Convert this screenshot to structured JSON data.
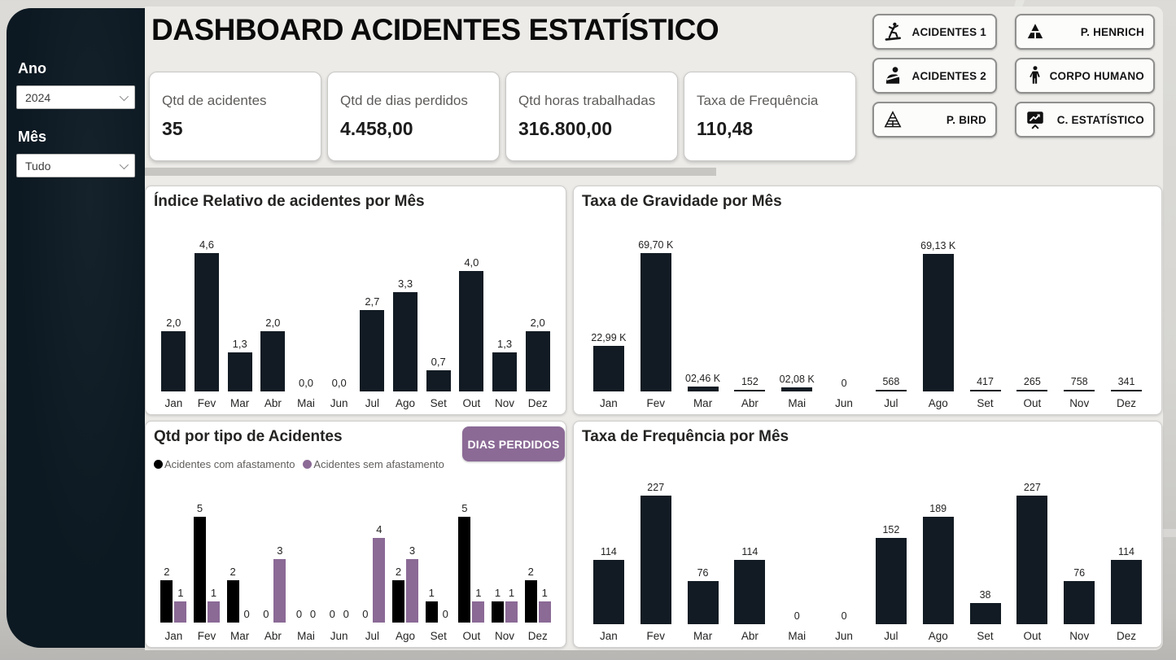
{
  "header": {
    "title": "DASHBOARD ACIDENTES ESTATÍSTICO",
    "nav_buttons": [
      {
        "label": "ACIDENTES 1",
        "icon": "slipping-person-icon"
      },
      {
        "label": "P. HENRICH",
        "icon": "pyramid-solid-icon"
      },
      {
        "label": "ACIDENTES 2",
        "icon": "injured-person-icon"
      },
      {
        "label": "CORPO HUMANO",
        "icon": "human-body-icon"
      },
      {
        "label": "P. BIRD",
        "icon": "pyramid-outline-icon"
      },
      {
        "label": "C. ESTATÍSTICO",
        "icon": "chart-presentation-icon"
      }
    ]
  },
  "sidebar": {
    "ano_label": "Ano",
    "ano_value": "2024",
    "mes_label": "Mês",
    "mes_value": "Tudo"
  },
  "kpis": [
    {
      "label": "Qtd de acidentes",
      "value": "35"
    },
    {
      "label": "Qtd de dias perdidos",
      "value": "4.458,00"
    },
    {
      "label": "Qtd horas trabalhadas",
      "value": "316.800,00"
    },
    {
      "label": "Taxa de Frequência",
      "value": "110,48"
    }
  ],
  "colors": {
    "bar_dark": "#121B23",
    "accent_purple": "#8B6A96",
    "sidebar_bg": "#0D1922",
    "legend_black": "#000000"
  },
  "chart_data": [
    {
      "type": "bar",
      "title": "Índice Relativo de acidentes por Mês",
      "categories": [
        "Jan",
        "Fev",
        "Mar",
        "Abr",
        "Mai",
        "Jun",
        "Jul",
        "Ago",
        "Set",
        "Out",
        "Nov",
        "Dez"
      ],
      "series": [
        {
          "name": "Índice relativo de acidentes",
          "color": "#121B23",
          "values": [
            2.0,
            4.6,
            1.3,
            2.0,
            0.0,
            0.0,
            2.7,
            3.3,
            0.7,
            4.0,
            1.3,
            2.0
          ],
          "labels": [
            "2,0",
            "4,6",
            "1,3",
            "2,0",
            "0,0",
            "0,0",
            "2,7",
            "3,3",
            "0,7",
            "4,0",
            "1,3",
            "2,0"
          ]
        }
      ],
      "ylim": [
        0,
        4.6
      ],
      "grid": false,
      "legend": "none"
    },
    {
      "type": "bar",
      "title": "Taxa de Gravidade por Mês",
      "categories": [
        "Jan",
        "Fev",
        "Mar",
        "Abr",
        "Mai",
        "Jun",
        "Jul",
        "Ago",
        "Set",
        "Out",
        "Nov",
        "Dez"
      ],
      "series": [
        {
          "name": "Taxa de gravidade",
          "color": "#121B23",
          "values": [
            22990,
            69700,
            2460,
            152,
            2080,
            0,
            568,
            69130,
            417,
            265,
            758,
            341
          ],
          "labels": [
            "22,99 K",
            "69,70 K",
            "02,46 K",
            "152",
            "02,08 K",
            "0",
            "568",
            "69,13 K",
            "417",
            "265",
            "758",
            "341"
          ]
        }
      ],
      "ylim": [
        0,
        69700
      ],
      "grid": false,
      "legend": "none"
    },
    {
      "type": "grouped-bar",
      "title": "Qtd por tipo de Acidentes",
      "action_button": "DIAS PERDIDOS",
      "categories": [
        "Jan",
        "Fev",
        "Mar",
        "Abr",
        "Mai",
        "Jun",
        "Jul",
        "Ago",
        "Set",
        "Out",
        "Nov",
        "Dez"
      ],
      "series": [
        {
          "name": "Acidentes com afastamento",
          "color": "#000000",
          "values": [
            2,
            5,
            2,
            0,
            0,
            0,
            0,
            2,
            1,
            5,
            1,
            2
          ],
          "labels": [
            "2",
            "5",
            "2",
            "0",
            "0",
            "0",
            "0",
            "2",
            "1",
            "5",
            "1",
            "2"
          ]
        },
        {
          "name": "Acidentes sem afastamento",
          "color": "#8B6A96",
          "values": [
            1,
            1,
            0,
            3,
            0,
            0,
            4,
            3,
            0,
            1,
            1,
            1
          ],
          "labels": [
            "1",
            "1",
            "0",
            "3",
            "0",
            "0",
            "4",
            "3",
            "0",
            "1",
            "1",
            "1"
          ]
        }
      ],
      "ylim": [
        0,
        5
      ],
      "grid": false,
      "legend": "top-left"
    },
    {
      "type": "bar",
      "title": "Taxa de Frequência por Mês",
      "categories": [
        "Jan",
        "Fev",
        "Mar",
        "Abr",
        "Mai",
        "Jun",
        "Jul",
        "Ago",
        "Set",
        "Out",
        "Nov",
        "Dez"
      ],
      "series": [
        {
          "name": "Taxa de frequência",
          "color": "#121B23",
          "values": [
            114,
            227,
            76,
            114,
            0,
            0,
            152,
            189,
            38,
            227,
            76,
            114
          ],
          "labels": [
            "114",
            "227",
            "76",
            "114",
            "0",
            "0",
            "152",
            "189",
            "38",
            "227",
            "76",
            "114"
          ]
        }
      ],
      "ylim": [
        0,
        227
      ],
      "grid": false,
      "legend": "none"
    }
  ]
}
